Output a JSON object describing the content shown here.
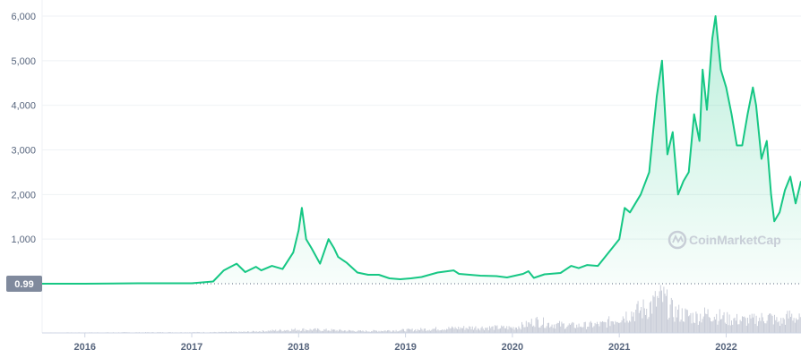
{
  "watermark": "CoinMarketCap",
  "colors": {
    "line": "#16c784",
    "volume": "#c9cdd8",
    "axis": "#58667e",
    "grid": "#eff2f5",
    "tag_bg": "#808a9d"
  },
  "chart_data": {
    "type": "area",
    "title": "",
    "xlabel": "",
    "ylabel": "",
    "ylim": [
      0,
      6000
    ],
    "yticks": [
      "1,000",
      "2,000",
      "3,000",
      "4,000",
      "5,000",
      "6,000"
    ],
    "xticks": [
      "2016",
      "2017",
      "2018",
      "2019",
      "2020",
      "2021",
      "2022"
    ],
    "reference_line": {
      "value": 0.99,
      "label": "0.99"
    },
    "grid": true,
    "series": [
      {
        "x": [
          2015.6,
          2016.0,
          2016.5,
          2017.0,
          2017.2,
          2017.3,
          2017.42,
          2017.5,
          2017.6,
          2017.65,
          2017.75,
          2017.85,
          2017.95,
          2018.0,
          2018.03,
          2018.07,
          2018.12,
          2018.2,
          2018.28,
          2018.33,
          2018.37,
          2018.45,
          2018.55,
          2018.65,
          2018.75,
          2018.85,
          2018.95,
          2019.05,
          2019.15,
          2019.3,
          2019.45,
          2019.5,
          2019.6,
          2019.7,
          2019.85,
          2019.95,
          2020.1,
          2020.15,
          2020.2,
          2020.3,
          2020.45,
          2020.55,
          2020.62,
          2020.7,
          2020.8,
          2020.9,
          2021.0,
          2021.05,
          2021.1,
          2021.2,
          2021.28,
          2021.32,
          2021.35,
          2021.4,
          2021.45,
          2021.5,
          2021.55,
          2021.6,
          2021.65,
          2021.7,
          2021.75,
          2021.78,
          2021.82,
          2021.87,
          2021.9,
          2021.95,
          2022.0,
          2022.05,
          2022.1,
          2022.15,
          2022.2,
          2022.25,
          2022.28,
          2022.33,
          2022.38,
          2022.42,
          2022.45,
          2022.5,
          2022.55,
          2022.6,
          2022.65,
          2022.7
        ],
        "values": [
          1,
          1,
          10,
          10,
          50,
          300,
          450,
          260,
          380,
          300,
          400,
          330,
          700,
          1200,
          1700,
          1000,
          800,
          450,
          1000,
          800,
          600,
          470,
          250,
          200,
          200,
          120,
          100,
          120,
          150,
          250,
          300,
          220,
          200,
          180,
          170,
          140,
          220,
          280,
          130,
          210,
          240,
          400,
          350,
          420,
          400,
          700,
          1000,
          1700,
          1600,
          2000,
          2500,
          3500,
          4200,
          5000,
          2900,
          3400,
          2000,
          2300,
          2500,
          3800,
          3200,
          4800,
          3900,
          5500,
          6000,
          4800,
          4400,
          3800,
          3100,
          3100,
          3800,
          4400,
          4000,
          2800,
          3200,
          2000,
          1400,
          1600,
          2100,
          2400,
          1800,
          2300
        ]
      }
    ],
    "volume": {
      "x": [
        2015.6,
        2017.2,
        2017.5,
        2018.0,
        2018.3,
        2018.6,
        2019.0,
        2019.3,
        2019.6,
        2020.0,
        2020.15,
        2020.2,
        2020.35,
        2020.6,
        2020.85,
        2021.0,
        2021.1,
        2021.25,
        2021.35,
        2021.4,
        2021.5,
        2021.7,
        2021.85,
        2022.0,
        2022.2,
        2022.4,
        2022.5,
        2022.6,
        2022.7
      ],
      "values": [
        0.01,
        0.02,
        0.03,
        0.1,
        0.08,
        0.05,
        0.08,
        0.12,
        0.15,
        0.15,
        0.25,
        0.35,
        0.25,
        0.2,
        0.25,
        0.45,
        0.55,
        0.7,
        0.9,
        1.0,
        0.6,
        0.45,
        0.55,
        0.4,
        0.35,
        0.45,
        0.3,
        0.5,
        0.35
      ]
    }
  }
}
